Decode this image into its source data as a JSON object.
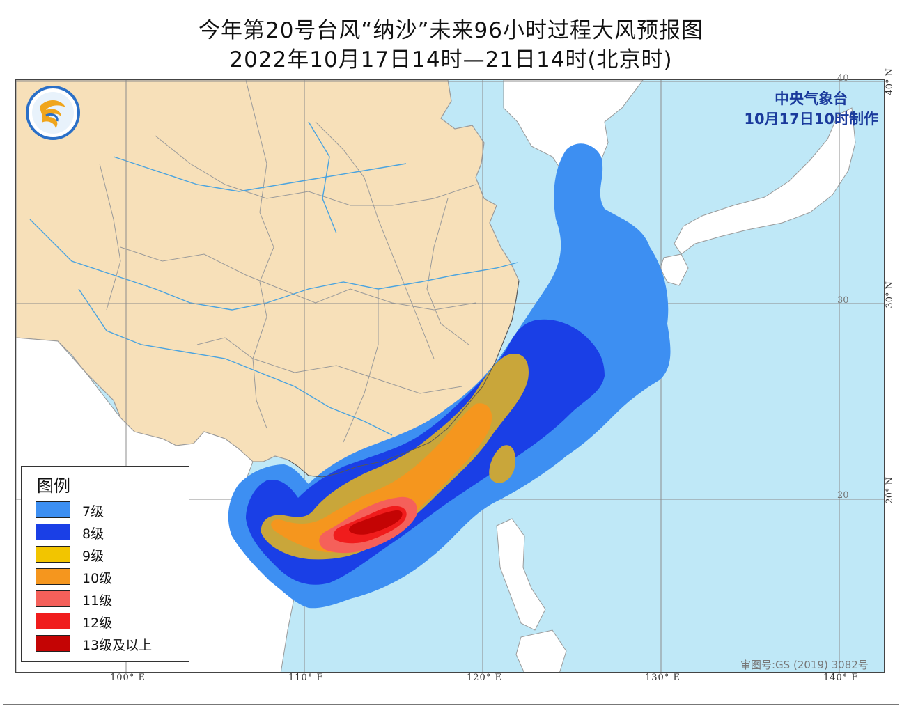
{
  "title": {
    "line1": "今年第20号台风“纳沙”未来96小时过程大风预报图",
    "line2": "2022年10月17日14时—21日14时(北京时)"
  },
  "issuer": {
    "agency": "中央气象台",
    "issued": "10月17日10时制作"
  },
  "map": {
    "longitude_labels": [
      "100° E",
      "110° E",
      "120° E",
      "130° E",
      "140° E"
    ],
    "latitude_labels": [
      "20° N",
      "30° N",
      "40° N"
    ],
    "grid_inner_labels": [
      "20",
      "30",
      "40"
    ],
    "review_number": "审图号:GS (2019) 3082号",
    "logo_icon": "cma-logo-icon",
    "colors": {
      "sea": "#bfe8f7",
      "china_land": "#f7e0b9",
      "other_land": "#ffffff",
      "rivers": "#4aa3df",
      "borders": "#8a8a8a"
    }
  },
  "legend": {
    "title": "图例",
    "items": [
      {
        "label": "7级",
        "color": "#3d8ff2"
      },
      {
        "label": "8级",
        "color": "#1a3fe6"
      },
      {
        "label": "9级",
        "color": "#f2c500"
      },
      {
        "label": "10级",
        "color": "#f5961e"
      },
      {
        "label": "11级",
        "color": "#f5605a"
      },
      {
        "label": "12级",
        "color": "#f01c1c"
      },
      {
        "label": "13级及以上",
        "color": "#c40404"
      }
    ]
  }
}
